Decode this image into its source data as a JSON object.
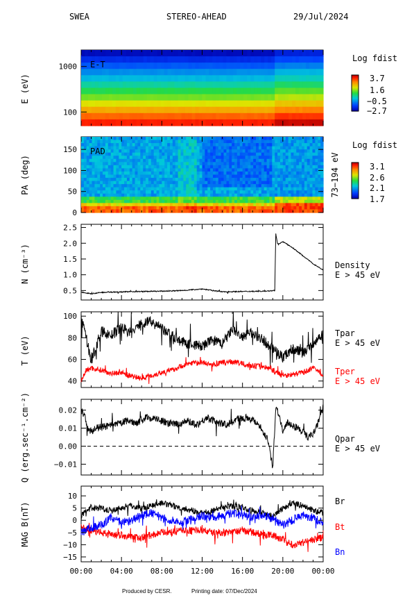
{
  "header": {
    "instrument": "SWEA",
    "spacecraft": "STEREO-AHEAD",
    "date": "29/Jul/2024"
  },
  "footer": {
    "produced": "Produced by CESR.",
    "printing": "Printing date: 07/Dec/2024"
  },
  "chart_data": [
    {
      "id": "et",
      "type": "heatmap",
      "panel_label": "E-T",
      "ylabel": "E (eV)",
      "yscale": "log",
      "ylim": [
        50,
        2300
      ],
      "ytick_labels": [
        "100",
        "1000"
      ],
      "colorbar": {
        "title": "Log fdist",
        "ticks": [
          "3.7",
          "1.6",
          "−0.5",
          "−2.7"
        ],
        "range": [
          -2.7,
          3.7
        ]
      },
      "energy_rows_log_fdist": [
        -2.5,
        -2.0,
        -1.5,
        -1.0,
        -0.6,
        -0.1,
        0.4,
        0.9,
        1.5,
        2.1,
        2.7,
        3.2
      ]
    },
    {
      "id": "pad",
      "type": "heatmap",
      "panel_label": "PAD",
      "ylabel": "PA (deg)",
      "ylim": [
        0,
        180
      ],
      "ytick_labels": [
        "0",
        "50",
        "100",
        "150"
      ],
      "side_label": "73−194 eV",
      "colorbar": {
        "title": "Log fdist",
        "ticks": [
          "3.1",
          "2.6",
          "2.1",
          "1.7"
        ],
        "range": [
          1.7,
          3.1
        ]
      }
    },
    {
      "id": "density",
      "type": "line",
      "ylabel": "N (cm⁻³)",
      "ylim": [
        0.2,
        2.6
      ],
      "ytick_labels": [
        "0.5",
        "1.0",
        "1.5",
        "2.0",
        "2.5"
      ],
      "series": [
        {
          "name": "Density",
          "name2": "E > 45 eV",
          "color": "#000000",
          "x": [
            0,
            0.5,
            1.0,
            2,
            4,
            6,
            8,
            10,
            12,
            14,
            16,
            18,
            19.2,
            19.3,
            19.5,
            20,
            21,
            22,
            23,
            24
          ],
          "y": [
            0.45,
            0.42,
            0.4,
            0.44,
            0.46,
            0.47,
            0.48,
            0.5,
            0.55,
            0.46,
            0.47,
            0.48,
            0.5,
            2.3,
            1.95,
            2.05,
            1.85,
            1.6,
            1.35,
            1.15
          ]
        }
      ]
    },
    {
      "id": "temperature",
      "type": "line",
      "ylabel": "T (eV)",
      "ylim": [
        34,
        104
      ],
      "ytick_labels": [
        "40",
        "60",
        "80",
        "100"
      ],
      "series": [
        {
          "name": "Tpar",
          "name2": "E > 45 eV",
          "color": "#000000",
          "x": [
            0,
            0.5,
            1,
            2,
            3,
            4,
            5,
            6,
            7,
            8,
            9,
            10,
            11,
            12,
            13,
            14,
            15,
            16,
            17,
            18,
            19,
            20,
            21,
            22,
            23,
            24
          ],
          "y": [
            97,
            80,
            58,
            86,
            82,
            90,
            84,
            94,
            95,
            88,
            82,
            76,
            74,
            72,
            78,
            74,
            88,
            80,
            85,
            78,
            70,
            62,
            70,
            66,
            74,
            85
          ]
        },
        {
          "name": "Tper",
          "name2": "E > 45 eV",
          "color": "#ff0000",
          "x": [
            0,
            0.5,
            1,
            2,
            3,
            4,
            5,
            6,
            7,
            8,
            9,
            10,
            11,
            12,
            13,
            14,
            15,
            16,
            17,
            18,
            19,
            20,
            21,
            22,
            23,
            24
          ],
          "y": [
            40,
            50,
            52,
            50,
            47,
            48,
            44,
            43,
            45,
            48,
            50,
            54,
            57,
            57,
            55,
            57,
            58,
            56,
            54,
            54,
            50,
            45,
            46,
            48,
            52,
            46
          ]
        }
      ]
    },
    {
      "id": "heatflux",
      "type": "line",
      "ylabel": "Q (erg.sec⁻¹.cm⁻²)",
      "ylim": [
        -0.016,
        0.026
      ],
      "ytick_labels": [
        "−0.01",
        "0.00",
        "0.01",
        "0.02"
      ],
      "series": [
        {
          "name": "Qpar",
          "name2": "E > 45 eV",
          "color": "#000000",
          "x": [
            0,
            0.3,
            0.8,
            1.5,
            2.5,
            3.5,
            4.5,
            5.5,
            6.5,
            7.5,
            8.5,
            9.5,
            10.5,
            11.5,
            12.5,
            13.5,
            14.5,
            15.5,
            16.5,
            17.5,
            18.5,
            19.0,
            19.3,
            19.6,
            20.0,
            20.5,
            21.5,
            22.5,
            23.2,
            23.6,
            24
          ],
          "y": [
            0.02,
            0.017,
            0.008,
            0.01,
            0.011,
            0.012,
            0.014,
            0.013,
            0.016,
            0.015,
            0.013,
            0.012,
            0.014,
            0.012,
            0.016,
            0.013,
            0.012,
            0.015,
            0.016,
            0.013,
            0.004,
            -0.012,
            0.022,
            0.018,
            0.008,
            0.013,
            0.01,
            0.005,
            0.008,
            0.015,
            0.022
          ]
        }
      ],
      "reference_line": 0
    },
    {
      "id": "mag",
      "type": "line",
      "ylabel": "MAG B(nT)",
      "ylim": [
        -17,
        14
      ],
      "ytick_labels": [
        "−15",
        "−10",
        "−5",
        "0",
        "5",
        "10"
      ],
      "xtick_labels": [
        "00:00",
        "04:00",
        "08:00",
        "12:00",
        "16:00",
        "20:00",
        "00:00"
      ],
      "series": [
        {
          "name": "Br",
          "color": "#000000",
          "x": [
            0,
            1,
            2,
            3,
            4,
            5,
            6,
            7,
            8,
            9,
            10,
            11,
            12,
            13,
            14,
            15,
            16,
            17,
            18,
            19,
            20,
            21,
            22,
            23,
            24
          ],
          "y": [
            2,
            5,
            5,
            4,
            5,
            6,
            5,
            6,
            7,
            6,
            5,
            4,
            3,
            4,
            5,
            6,
            5,
            4,
            3,
            2,
            5,
            7,
            6,
            4,
            3
          ]
        },
        {
          "name": "Bt",
          "color": "#ff0000",
          "x": [
            0,
            1,
            2,
            3,
            4,
            5,
            6,
            7,
            8,
            9,
            10,
            11,
            12,
            13,
            14,
            15,
            16,
            17,
            18,
            19,
            20,
            21,
            22,
            23,
            24
          ],
          "y": [
            -3,
            -4,
            -5,
            -6,
            -6,
            -7,
            -7,
            -6,
            -5,
            -5,
            -4,
            -4,
            -4,
            -5,
            -5,
            -5,
            -4,
            -5,
            -6,
            -6,
            -8,
            -10,
            -9,
            -8,
            -7
          ]
        },
        {
          "name": "Bn",
          "color": "#0000ff",
          "x": [
            0,
            1,
            2,
            3,
            4,
            5,
            6,
            7,
            8,
            9,
            10,
            11,
            12,
            13,
            14,
            15,
            16,
            17,
            18,
            19,
            20,
            21,
            22,
            23,
            24
          ],
          "y": [
            -5,
            -3,
            -2,
            1,
            -1,
            0,
            2,
            3,
            1,
            0,
            -1,
            1,
            2,
            1,
            2,
            3,
            2,
            1,
            2,
            1,
            -2,
            0,
            2,
            1,
            -1
          ]
        }
      ]
    }
  ]
}
